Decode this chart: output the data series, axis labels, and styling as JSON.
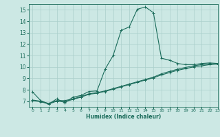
{
  "xlabel": "Humidex (Indice chaleur)",
  "xlim": [
    -0.5,
    23
  ],
  "ylim": [
    6.5,
    15.5
  ],
  "yticks": [
    7,
    8,
    9,
    10,
    11,
    12,
    13,
    14,
    15
  ],
  "xticks": [
    0,
    1,
    2,
    3,
    4,
    5,
    6,
    7,
    8,
    9,
    10,
    11,
    12,
    13,
    14,
    15,
    16,
    17,
    18,
    19,
    20,
    21,
    22,
    23
  ],
  "background_color": "#cce8e4",
  "grid_color": "#aacfcb",
  "line_color": "#1a6b5a",
  "curve1_x": [
    0,
    1,
    2,
    3,
    4,
    5,
    6,
    7,
    8,
    9,
    10,
    11,
    12,
    13,
    14,
    15,
    16,
    17,
    18,
    19,
    20,
    21,
    22,
    23
  ],
  "curve1_y": [
    7.8,
    7.05,
    6.75,
    7.2,
    6.85,
    7.35,
    7.5,
    7.85,
    7.9,
    9.8,
    11.0,
    13.2,
    13.5,
    15.05,
    15.25,
    14.75,
    10.75,
    10.6,
    10.3,
    10.2,
    10.2,
    10.3,
    10.35,
    10.3
  ],
  "curve2_x": [
    0,
    1,
    2,
    3,
    4,
    5,
    6,
    7,
    8,
    9,
    10,
    11,
    12,
    13,
    14,
    15,
    16,
    17,
    18,
    19,
    20,
    21,
    22,
    23
  ],
  "curve2_y": [
    7.1,
    7.0,
    6.8,
    7.05,
    7.05,
    7.2,
    7.4,
    7.65,
    7.75,
    7.9,
    8.1,
    8.3,
    8.5,
    8.7,
    8.9,
    9.1,
    9.4,
    9.6,
    9.8,
    9.95,
    10.1,
    10.2,
    10.25,
    10.3
  ],
  "curve3_x": [
    0,
    1,
    2,
    3,
    4,
    5,
    6,
    7,
    8,
    9,
    10,
    11,
    12,
    13,
    14,
    15,
    16,
    17,
    18,
    19,
    20,
    21,
    22,
    23
  ],
  "curve3_y": [
    7.05,
    6.95,
    6.75,
    7.0,
    6.95,
    7.15,
    7.35,
    7.6,
    7.7,
    7.85,
    8.05,
    8.25,
    8.45,
    8.65,
    8.85,
    9.05,
    9.3,
    9.5,
    9.7,
    9.85,
    10.0,
    10.1,
    10.2,
    10.25
  ]
}
